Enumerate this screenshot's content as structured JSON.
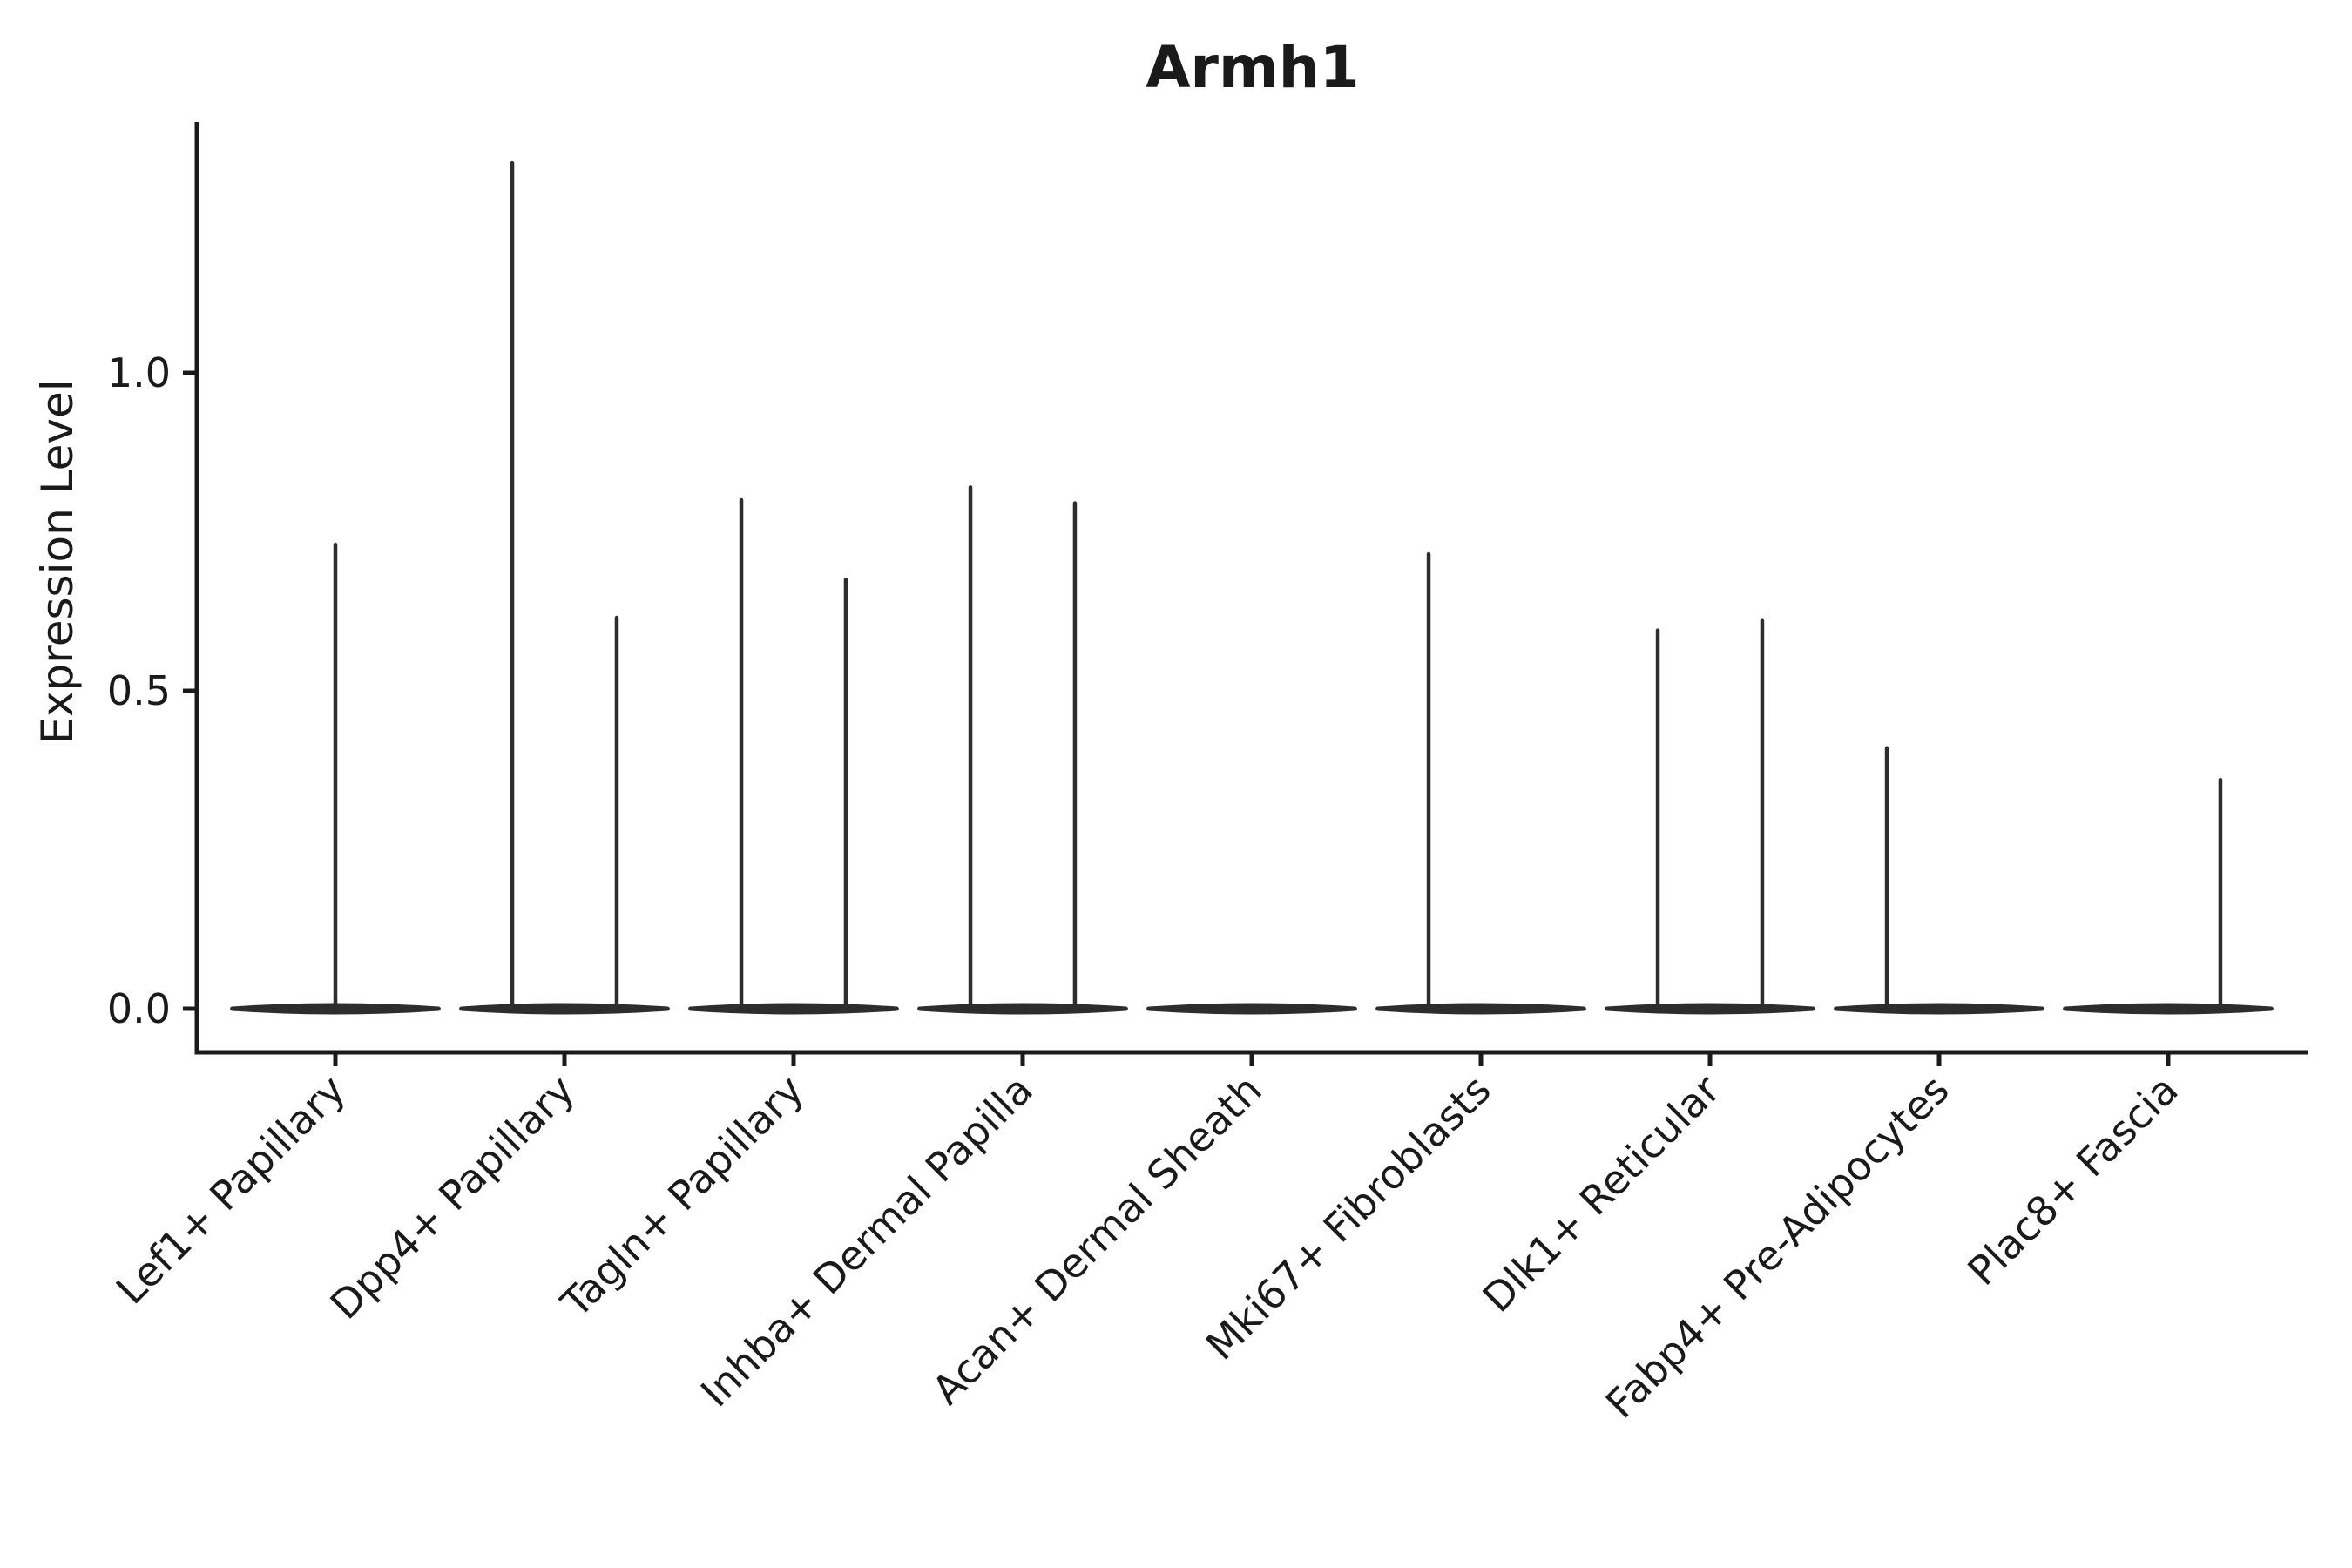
{
  "figure": {
    "title": "Armh1",
    "ylabel": "Expression Level"
  },
  "chart_data": {
    "type": "violin",
    "title": "Armh1",
    "xlabel": "",
    "ylabel": "Expression Level",
    "yticks": [
      0.0,
      0.5,
      1.0
    ],
    "ytick_labels": [
      "0.0",
      "0.5",
      "1.0"
    ],
    "ylim": [
      -0.07,
      1.39
    ],
    "grid": false,
    "legend": null,
    "x_tick_rotation_deg": 45,
    "violin_base_halfwidth": 0.45,
    "categories": [
      "Lef1+ Papillary",
      "Dpp4+ Papillary",
      "Tagln+ Papillary",
      "Inhba+ Dermal Papilla",
      "Acan+ Dermal Sheath",
      "Mki67+ Fibroblasts",
      "Dlk1+ Reticular",
      "Fabp4+ Pre-Adipocytes",
      "Plac8+ Fascia"
    ],
    "series": [
      {
        "category": "Lef1+ Papillary",
        "needles": [
          {
            "offset": 0.0,
            "max": 0.73
          }
        ]
      },
      {
        "category": "Dpp4+ Papillary",
        "needles": [
          {
            "offset": -0.228,
            "max": 1.33
          },
          {
            "offset": 0.228,
            "max": 0.615
          }
        ]
      },
      {
        "category": "Tagln+ Papillary",
        "needles": [
          {
            "offset": -0.228,
            "max": 0.8
          },
          {
            "offset": 0.228,
            "max": 0.675
          }
        ]
      },
      {
        "category": "Inhba+ Dermal Papilla",
        "needles": [
          {
            "offset": -0.228,
            "max": 0.82
          },
          {
            "offset": 0.228,
            "max": 0.795
          }
        ]
      },
      {
        "category": "Acan+ Dermal Sheath",
        "needles": []
      },
      {
        "category": "Mki67+ Fibroblasts",
        "needles": [
          {
            "offset": -0.228,
            "max": 0.715
          }
        ]
      },
      {
        "category": "Dlk1+ Reticular",
        "needles": [
          {
            "offset": -0.228,
            "max": 0.595
          },
          {
            "offset": 0.228,
            "max": 0.61
          }
        ]
      },
      {
        "category": "Fabp4+ Pre-Adipocytes",
        "needles": [
          {
            "offset": -0.228,
            "max": 0.41
          }
        ]
      },
      {
        "category": "Plac8+ Fascia",
        "needles": [
          {
            "offset": 0.228,
            "max": 0.36
          }
        ]
      }
    ],
    "colors": {
      "violin": "#2d2d2d",
      "axis": "#1a1a1a",
      "text": "#1a1a1a",
      "background": "#ffffff"
    }
  }
}
